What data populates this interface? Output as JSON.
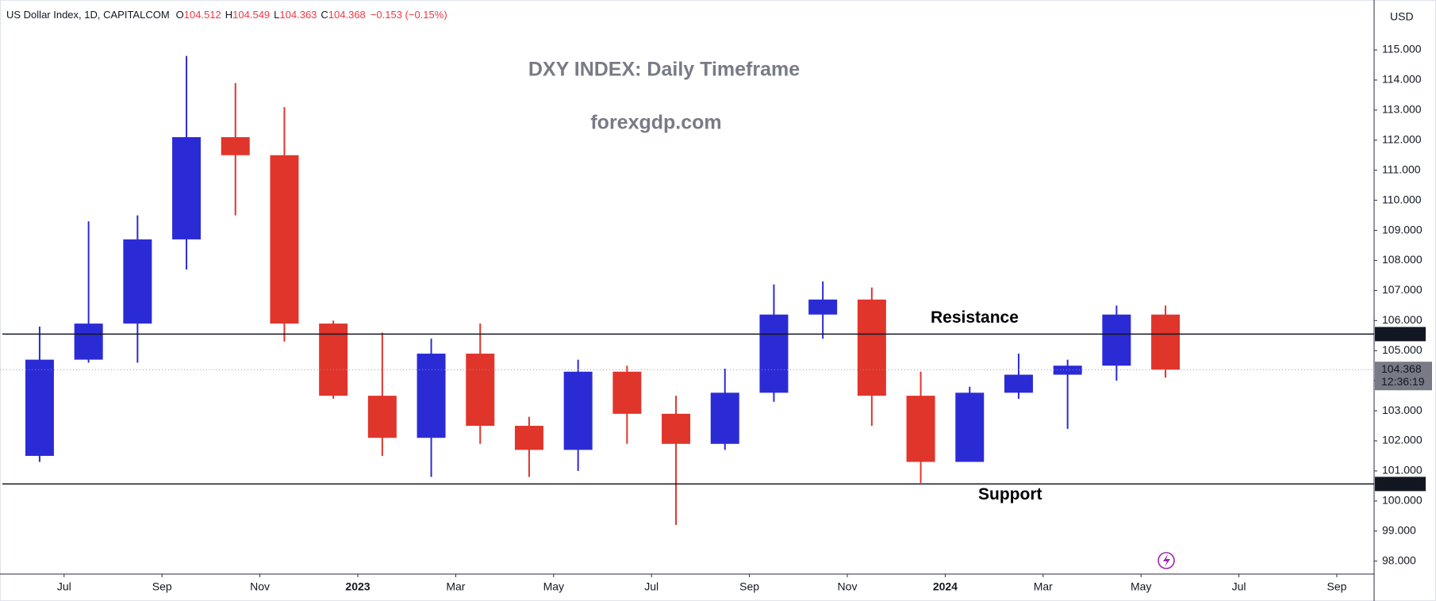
{
  "chart_data": {
    "type": "candlestick",
    "symbol": "US Dollar Index, 1D, CAPITALCOM",
    "quote": [
      {
        "key": "O",
        "value": "104.512"
      },
      {
        "key": "H",
        "value": "104.549"
      },
      {
        "key": "L",
        "value": "104.363"
      },
      {
        "key": "C",
        "value": "104.368"
      }
    ],
    "change": "−0.153 (−0.15%)",
    "title": "DXY INDEX: Daily Timeframe",
    "subtitle": "forexgdp.com",
    "currency": "USD",
    "x": [
      "2022-06",
      "2022-07",
      "2022-08",
      "2022-09",
      "2022-10",
      "2022-11",
      "2022-12",
      "2023-01",
      "2023-02",
      "2023-03",
      "2023-04",
      "2023-05",
      "2023-06",
      "2023-07",
      "2023-08",
      "2023-09",
      "2023-10",
      "2023-11",
      "2023-12",
      "2024-01",
      "2024-02",
      "2024-03",
      "2024-04",
      "2024-05"
    ],
    "open": [
      101.5,
      104.7,
      105.9,
      108.7,
      112.1,
      111.5,
      105.9,
      103.5,
      102.1,
      104.9,
      102.5,
      101.7,
      104.3,
      102.9,
      101.9,
      103.6,
      106.2,
      106.7,
      103.5,
      101.3,
      103.6,
      104.2,
      104.5,
      106.2
    ],
    "high": [
      105.8,
      109.3,
      109.5,
      114.8,
      113.9,
      113.1,
      106.0,
      105.6,
      105.4,
      105.9,
      102.8,
      104.7,
      104.5,
      103.5,
      104.4,
      107.2,
      107.3,
      107.1,
      104.3,
      103.8,
      104.9,
      104.7,
      106.5,
      106.5
    ],
    "low": [
      101.3,
      104.6,
      104.6,
      107.7,
      109.5,
      105.3,
      103.4,
      101.5,
      100.8,
      101.9,
      100.8,
      101.0,
      101.9,
      99.2,
      101.7,
      103.3,
      105.4,
      102.5,
      100.6,
      101.3,
      103.4,
      102.4,
      104.0,
      104.1
    ],
    "close": [
      104.7,
      105.9,
      108.7,
      112.1,
      111.5,
      105.9,
      103.5,
      102.1,
      104.9,
      102.5,
      101.7,
      104.3,
      102.9,
      101.9,
      103.6,
      106.2,
      106.7,
      103.5,
      101.3,
      103.6,
      104.2,
      104.5,
      106.2,
      104.368
    ],
    "up_color": "#2b2bd6",
    "down_color": "#e0352b",
    "ylim": [
      97.57,
      116.53
    ],
    "yticks": [
      {
        "value": 98,
        "label": "98.000"
      },
      {
        "value": 99,
        "label": "99.000"
      },
      {
        "value": 100,
        "label": "100.000"
      },
      {
        "value": 101,
        "label": "101.000"
      },
      {
        "value": 102,
        "label": "102.000"
      },
      {
        "value": 103,
        "label": "103.000"
      },
      {
        "value": 104,
        "label": "104.000"
      },
      {
        "value": 105,
        "label": "105.000"
      },
      {
        "value": 106,
        "label": "106.000"
      },
      {
        "value": 107,
        "label": "107.000"
      },
      {
        "value": 108,
        "label": "108.000"
      },
      {
        "value": 109,
        "label": "109.000"
      },
      {
        "value": 110,
        "label": "110.000"
      },
      {
        "value": 111,
        "label": "111.000"
      },
      {
        "value": 112,
        "label": "112.000"
      },
      {
        "value": 113,
        "label": "113.000"
      },
      {
        "value": 114,
        "label": "114.000"
      },
      {
        "value": 115,
        "label": "115.000"
      }
    ],
    "xticks": [
      {
        "value": "2022-07",
        "label": "Jul"
      },
      {
        "value": "2022-09",
        "label": "Sep"
      },
      {
        "value": "2022-11",
        "label": "Nov"
      },
      {
        "value": "2023-01",
        "label": "2023"
      },
      {
        "value": "2023-03",
        "label": "Mar"
      },
      {
        "value": "2023-05",
        "label": "May"
      },
      {
        "value": "2023-07",
        "label": "Jul"
      },
      {
        "value": "2023-09",
        "label": "Sep"
      },
      {
        "value": "2023-11",
        "label": "Nov"
      },
      {
        "value": "2024-01",
        "label": "2024"
      },
      {
        "value": "2024-03",
        "label": "Mar"
      },
      {
        "value": "2024-05",
        "label": "May"
      },
      {
        "value": "2024-07",
        "label": "Jul"
      },
      {
        "value": "2024-09",
        "label": "Sep"
      }
    ],
    "grid": false,
    "levels": [
      {
        "name": "Resistance",
        "value": 105.55,
        "label": "105.550"
      },
      {
        "name": "Support",
        "value": 100.566,
        "label": "100.566"
      }
    ],
    "last_price": {
      "value": 104.368,
      "label": "104.368",
      "countdown": "12:36:19"
    }
  }
}
